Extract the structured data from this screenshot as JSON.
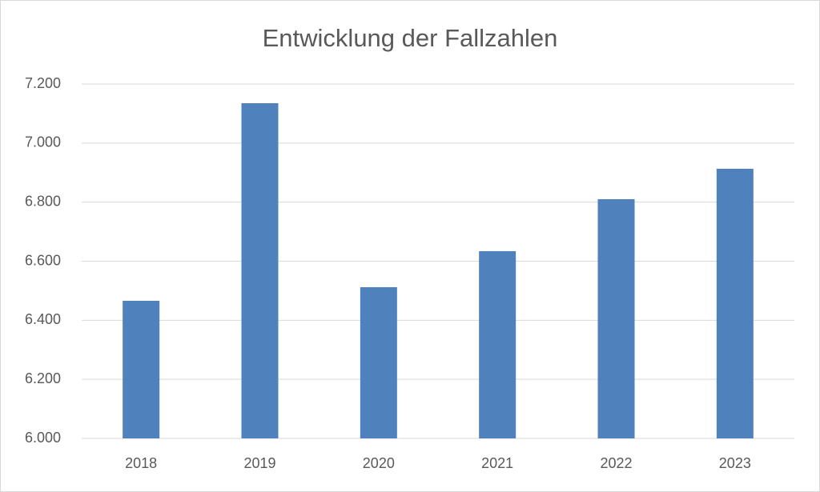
{
  "chart_data": {
    "type": "bar",
    "title": "Entwicklung der Fallzahlen",
    "categories": [
      "2018",
      "2019",
      "2020",
      "2021",
      "2022",
      "2023"
    ],
    "values": [
      6466,
      7135,
      6512,
      6634,
      6810,
      6913
    ],
    "color": "#4f81bd",
    "ylim": [
      6000,
      7200
    ],
    "yticks": [
      {
        "value": 6000,
        "label": "6.000"
      },
      {
        "value": 6200,
        "label": "6.200"
      },
      {
        "value": 6400,
        "label": "6.400"
      },
      {
        "value": 6600,
        "label": "6.600"
      },
      {
        "value": 6800,
        "label": "6.800"
      },
      {
        "value": 7000,
        "label": "7.000"
      },
      {
        "value": 7200,
        "label": "7.200"
      }
    ],
    "grid": true
  }
}
